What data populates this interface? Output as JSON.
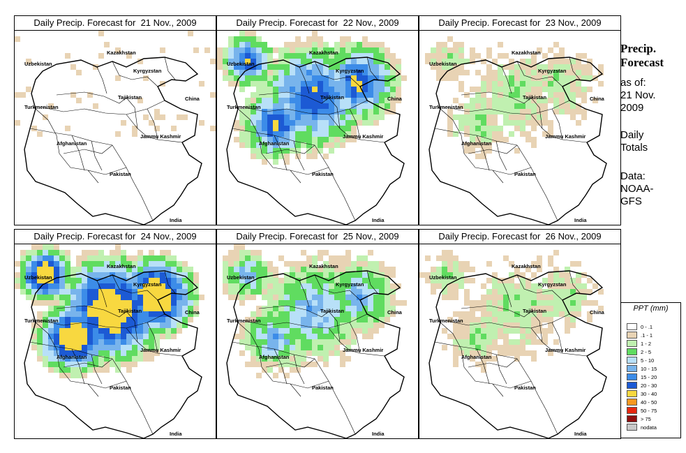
{
  "panels": [
    {
      "title": "Daily Precip. Forecast for  21 Nov., 2009",
      "intensity": 0
    },
    {
      "title": "Daily Precip. Forecast for  22 Nov., 2009",
      "intensity": 3
    },
    {
      "title": "Daily Precip. Forecast for  23 Nov., 2009",
      "intensity": 1
    },
    {
      "title": "Daily Precip. Forecast for  24 Nov., 2009",
      "intensity": 4
    },
    {
      "title": "Daily Precip. Forecast for  25 Nov., 2009",
      "intensity": 2
    },
    {
      "title": "Daily Precip. Forecast for  26 Nov., 2009",
      "intensity": 1
    }
  ],
  "map_labels": {
    "kazakhstan": "Kazakhstan",
    "uzbekistan": "Uzbekistan",
    "kyrgyzstan": "Kyrgyzstan",
    "tajikistan": "Tajikistan",
    "turkmenistan": "Turkmenistan",
    "china": "China",
    "afghanistan": "Afghanistan",
    "jammu_kashmir": "Jammu Kashmir",
    "pakistan": "Pakistan",
    "india": "India"
  },
  "side": {
    "title_line1": "Precip.",
    "title_line2": "Forecast",
    "asof_line1": "as of:",
    "asof_line2": "21 Nov.",
    "asof_line3": "2009",
    "totals_line1": "Daily",
    "totals_line2": "Totals",
    "data_line1": "Data:",
    "data_line2": "NOAA-",
    "data_line3": "GFS"
  },
  "legend": {
    "title": "PPT (mm)",
    "items": [
      {
        "label": "0 - .1",
        "color": "#ffffff"
      },
      {
        "label": ".1 - 1",
        "color": "#e8d3b4"
      },
      {
        "label": "1 - 2",
        "color": "#c0f0b0"
      },
      {
        "label": "2 - 5",
        "color": "#60dc60"
      },
      {
        "label": "5 - 10",
        "color": "#b8e0f8"
      },
      {
        "label": "10 - 15",
        "color": "#78b4ec"
      },
      {
        "label": "15 - 20",
        "color": "#3c8ce8"
      },
      {
        "label": "20 - 30",
        "color": "#1c5ad4"
      },
      {
        "label": "30 - 40",
        "color": "#f8d840"
      },
      {
        "label": "40 - 50",
        "color": "#f89820"
      },
      {
        "label": "50 - 75",
        "color": "#e82810"
      },
      {
        "label": "> 75",
        "color": "#901010"
      },
      {
        "label": "nodata",
        "color": "#c8c8c8"
      }
    ]
  }
}
